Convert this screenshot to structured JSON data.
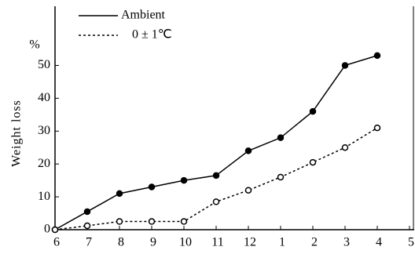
{
  "chart_data": {
    "type": "line",
    "y_label": "Weight loss",
    "y_unit": "%",
    "categories": [
      "6",
      "7",
      "8",
      "9",
      "10",
      "11",
      "12",
      "1",
      "2",
      "3",
      "4",
      "5"
    ],
    "series": [
      {
        "name": "Ambient",
        "color": "#000",
        "dash": "solid",
        "values": [
          0,
          5.5,
          11,
          13,
          15,
          16.5,
          24,
          28,
          36,
          50,
          53,
          null
        ]
      },
      {
        "name": "0 ± 1℃",
        "color": "#000",
        "dash": "dashed",
        "values": [
          0,
          1.2,
          2.5,
          2.5,
          2.5,
          8.5,
          12,
          16,
          20.5,
          25,
          31,
          null
        ]
      }
    ],
    "ylim": [
      0,
      68
    ],
    "yticks": [
      0,
      10,
      20,
      30,
      40,
      50
    ]
  }
}
